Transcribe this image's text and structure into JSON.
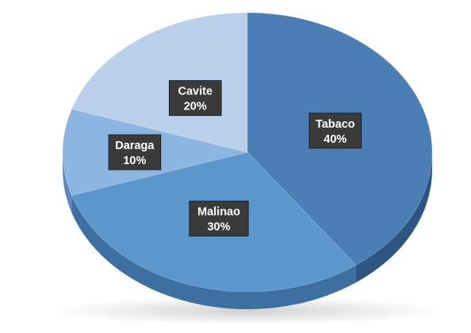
{
  "chart_data": {
    "type": "pie",
    "style": "3d",
    "categories": [
      "Tabaco",
      "Malinao",
      "Daraga",
      "Cavite"
    ],
    "values": [
      40,
      30,
      10,
      20
    ],
    "labels": [
      "40%",
      "30%",
      "10%",
      "20%"
    ],
    "colors": [
      "#4A7EB4",
      "#5B96CC",
      "#8DB5E2",
      "#BACFEA"
    ],
    "side_colors": [
      "#2E5580",
      "#3D6FA0",
      "#5E88BA",
      "#8AA6C8"
    ],
    "data_label_box_color": "#3a3a3a",
    "legend": "none",
    "title": ""
  }
}
